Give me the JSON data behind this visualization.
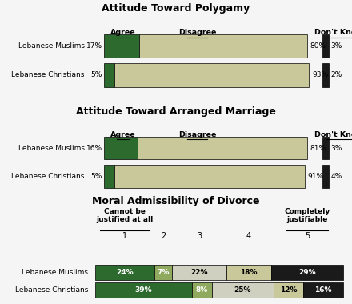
{
  "polygamy": {
    "title": "Attitude Toward Polygamy",
    "rows": [
      "Lebanese Muslims",
      "Lebanese Christians"
    ],
    "agree": [
      17,
      5
    ],
    "disagree": [
      80,
      93
    ],
    "dontknow": [
      3,
      2
    ],
    "agree_color": "#2d6a2d",
    "disagree_color": "#c8c89a",
    "dontknow_color": "#1a1a1a"
  },
  "arranged": {
    "title": "Attitude Toward Arranged Marriage",
    "rows": [
      "Lebanese Muslims",
      "Lebanese Christians"
    ],
    "agree": [
      16,
      5
    ],
    "disagree": [
      81,
      91
    ],
    "dontknow": [
      3,
      4
    ],
    "agree_color": "#2d6a2d",
    "disagree_color": "#c8c89a",
    "dontknow_color": "#1a1a1a"
  },
  "divorce": {
    "title": "Moral Admissibility of Divorce",
    "rows": [
      "Lebanese Muslims",
      "Lebanese Christians"
    ],
    "col_labels": [
      "1",
      "2",
      "3",
      "4",
      "5"
    ],
    "muslims": [
      24,
      7,
      22,
      18,
      29
    ],
    "christians": [
      39,
      8,
      25,
      12,
      16
    ],
    "colors": [
      "#2d6a2d",
      "#8faa5f",
      "#d0d0c0",
      "#c8c89a",
      "#1a1a1a"
    ],
    "text_colors": [
      "white",
      "white",
      "black",
      "black",
      "white"
    ]
  },
  "bg_color": "#f5f5f5"
}
